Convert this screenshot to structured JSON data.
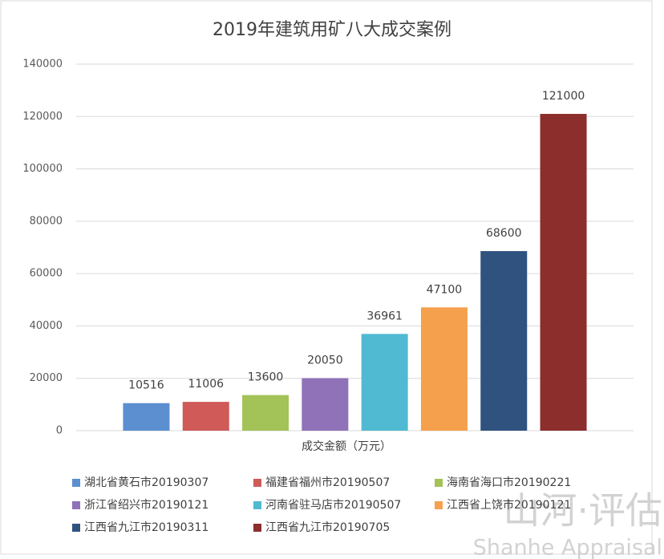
{
  "chart_data": {
    "type": "bar",
    "title": "2019年建筑用矿八大成交案例",
    "x_label": "成交金额（万元）",
    "categories": [
      null
    ],
    "series": [
      {
        "name": "湖北省黄石市20190307",
        "color": "#5b8fd0",
        "values": [
          10516
        ]
      },
      {
        "name": "福建省福州市20190507",
        "color": "#cf5a58",
        "values": [
          11006
        ]
      },
      {
        "name": "海南省海口市20190221",
        "color": "#a3c257",
        "values": [
          13600
        ]
      },
      {
        "name": "浙江省绍兴市20190121",
        "color": "#8f72b8",
        "values": [
          20050
        ]
      },
      {
        "name": "河南省驻马店市20190507",
        "color": "#4fbad1",
        "values": [
          36961
        ]
      },
      {
        "name": "江西省上饶市20190121",
        "color": "#f5a04c",
        "values": [
          47100
        ]
      },
      {
        "name": "江西省九江市20190311",
        "color": "#2f527f",
        "values": [
          68600
        ]
      },
      {
        "name": "江西省九江市20190705",
        "color": "#8b2e2c",
        "values": [
          121000
        ]
      }
    ],
    "ylim": [
      0,
      140000
    ],
    "yticks": [
      0,
      20000,
      40000,
      60000,
      80000,
      100000,
      120000,
      140000
    ],
    "grid": true,
    "legend": "bottom",
    "watermark": {
      "text": "山河·评估",
      "subtext": "Shanhe Appraisal"
    }
  }
}
